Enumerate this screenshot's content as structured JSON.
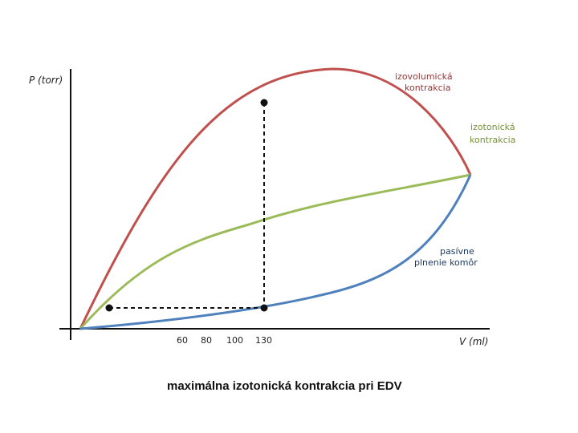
{
  "axes": {
    "y_label": "P (torr)",
    "x_label": "V (ml)",
    "x_ticks": [
      "60",
      "80",
      "100",
      "130"
    ]
  },
  "curves": {
    "isovolumic": {
      "label_line1": "izovolumická",
      "label_line2": "kontrakcia",
      "color": "#c0504d"
    },
    "isotonic": {
      "label_line1": "izotonická",
      "label_line2": "kontrakcia",
      "color": "#9bbb59"
    },
    "passive": {
      "label_line1": "pasívne",
      "label_line2": "plnenie komôr",
      "color": "#4f81bd"
    }
  },
  "caption": "maximálna izotonická kontrakcia pri EDV"
}
